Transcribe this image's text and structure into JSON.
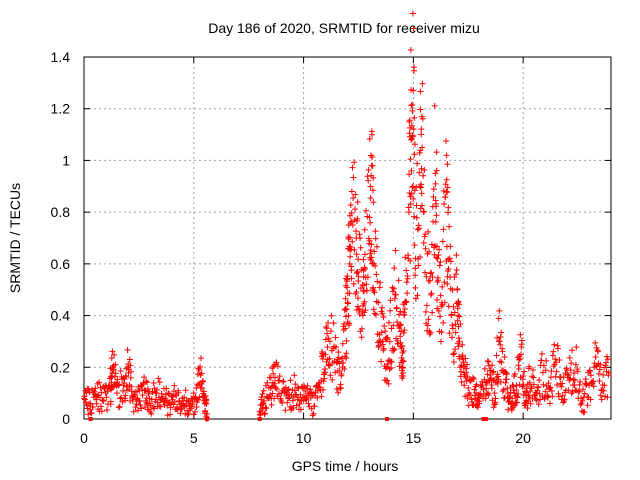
{
  "chart_data": {
    "type": "scatter",
    "title": "Day 186 of 2020, SRMTID for receiver mizu",
    "xlabel": "GPS time / hours",
    "ylabel": "SRMTID / TECUs",
    "xlim": [
      0,
      24
    ],
    "ylim": [
      0,
      1.4
    ],
    "xticks": [
      0,
      5,
      10,
      15,
      20
    ],
    "xtick_labels": [
      "0",
      "5",
      "10",
      "15",
      "20"
    ],
    "yticks": [
      0,
      0.2,
      0.4,
      0.6,
      0.8,
      1.0,
      1.2,
      1.4
    ],
    "ytick_labels": [
      "0",
      "0.2",
      "0.4",
      "0.6",
      "0.8",
      "1",
      "1.2",
      "1.4"
    ],
    "grid": true,
    "marker": "+",
    "series": [
      {
        "name": "SRMTID",
        "color": "#ff0000",
        "points": [
          [
            0.0,
            0.08
          ],
          [
            0.3,
            0.06
          ],
          [
            0.6,
            0.09
          ],
          [
            0.9,
            0.07
          ],
          [
            1.2,
            0.12
          ],
          [
            1.3,
            0.2
          ],
          [
            1.5,
            0.1
          ],
          [
            1.8,
            0.13
          ],
          [
            2.0,
            0.2
          ],
          [
            2.2,
            0.09
          ],
          [
            2.5,
            0.07
          ],
          [
            2.8,
            0.11
          ],
          [
            3.0,
            0.06
          ],
          [
            3.3,
            0.1
          ],
          [
            3.6,
            0.08
          ],
          [
            3.9,
            0.06
          ],
          [
            4.2,
            0.09
          ],
          [
            4.5,
            0.07
          ],
          [
            4.8,
            0.05
          ],
          [
            5.1,
            0.08
          ],
          [
            5.3,
            0.17
          ],
          [
            5.5,
            0.06
          ],
          [
            5.6,
            0.02
          ],
          [
            8.0,
            0.03
          ],
          [
            8.2,
            0.07
          ],
          [
            8.5,
            0.12
          ],
          [
            8.7,
            0.16
          ],
          [
            9.0,
            0.1
          ],
          [
            9.3,
            0.08
          ],
          [
            9.6,
            0.11
          ],
          [
            9.9,
            0.07
          ],
          [
            10.2,
            0.09
          ],
          [
            10.5,
            0.05
          ],
          [
            10.8,
            0.15
          ],
          [
            11.0,
            0.25
          ],
          [
            11.2,
            0.3
          ],
          [
            11.5,
            0.22
          ],
          [
            11.7,
            0.12
          ],
          [
            11.9,
            0.35
          ],
          [
            12.0,
            0.45
          ],
          [
            12.1,
            0.6
          ],
          [
            12.2,
            0.88
          ],
          [
            12.4,
            0.7
          ],
          [
            12.5,
            0.55
          ],
          [
            12.7,
            0.4
          ],
          [
            12.8,
            0.58
          ],
          [
            13.0,
            0.78
          ],
          [
            13.1,
            0.98
          ],
          [
            13.2,
            0.6
          ],
          [
            13.4,
            0.45
          ],
          [
            13.6,
            0.3
          ],
          [
            13.8,
            0.2
          ],
          [
            14.0,
            0.35
          ],
          [
            14.2,
            0.48
          ],
          [
            14.4,
            0.32
          ],
          [
            14.5,
            0.2
          ],
          [
            14.6,
            0.45
          ],
          [
            14.8,
            0.8
          ],
          [
            14.9,
            1.08
          ],
          [
            15.0,
            1.27
          ],
          [
            15.1,
            0.62
          ],
          [
            15.3,
            0.9
          ],
          [
            15.4,
            1.05
          ],
          [
            15.6,
            0.55
          ],
          [
            15.8,
            0.48
          ],
          [
            16.0,
            0.95
          ],
          [
            16.1,
            0.62
          ],
          [
            16.3,
            0.45
          ],
          [
            16.5,
            0.88
          ],
          [
            16.6,
            0.58
          ],
          [
            16.8,
            0.35
          ],
          [
            17.0,
            0.5
          ],
          [
            17.1,
            0.3
          ],
          [
            17.3,
            0.18
          ],
          [
            17.5,
            0.12
          ],
          [
            17.8,
            0.09
          ],
          [
            18.0,
            0.06
          ],
          [
            18.3,
            0.14
          ],
          [
            18.5,
            0.17
          ],
          [
            18.7,
            0.1
          ],
          [
            18.9,
            0.3
          ],
          [
            19.1,
            0.18
          ],
          [
            19.3,
            0.1
          ],
          [
            19.5,
            0.08
          ],
          [
            19.7,
            0.13
          ],
          [
            19.9,
            0.25
          ],
          [
            20.1,
            0.06
          ],
          [
            20.3,
            0.14
          ],
          [
            20.6,
            0.1
          ],
          [
            20.9,
            0.18
          ],
          [
            21.2,
            0.12
          ],
          [
            21.5,
            0.22
          ],
          [
            21.8,
            0.09
          ],
          [
            22.1,
            0.15
          ],
          [
            22.4,
            0.21
          ],
          [
            22.7,
            0.07
          ],
          [
            23.0,
            0.13
          ],
          [
            23.3,
            0.24
          ],
          [
            23.6,
            0.11
          ],
          [
            23.9,
            0.18
          ]
        ]
      }
    ],
    "outliers_near_zero": [
      0.3,
      5.6,
      8.0,
      13.8,
      18.2,
      18.3
    ]
  }
}
